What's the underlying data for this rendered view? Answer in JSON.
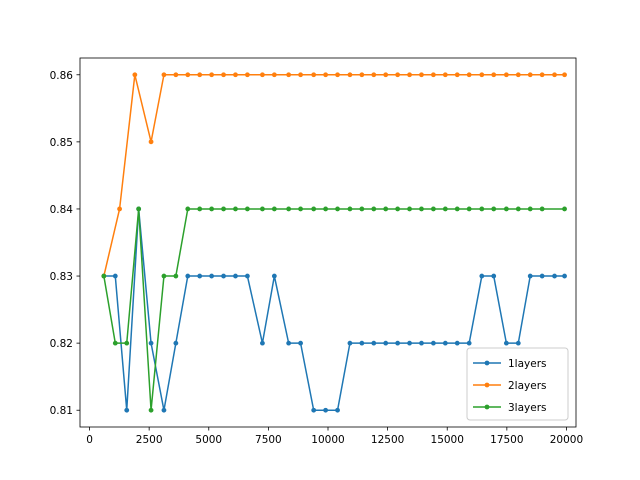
{
  "chart_data": {
    "type": "line",
    "title": "",
    "xlabel": "",
    "ylabel": "",
    "xlim": [
      -400,
      20400
    ],
    "ylim": [
      0.8075,
      0.8625
    ],
    "x_ticks": [
      {
        "value": 0,
        "label": "0"
      },
      {
        "value": 2500,
        "label": "2500"
      },
      {
        "value": 5000,
        "label": "5000"
      },
      {
        "value": 7500,
        "label": "7500"
      },
      {
        "value": 10000,
        "label": "10000"
      },
      {
        "value": 12500,
        "label": "12500"
      },
      {
        "value": 15000,
        "label": "15000"
      },
      {
        "value": 17500,
        "label": "17500"
      },
      {
        "value": 20000,
        "label": "20000"
      }
    ],
    "y_ticks": [
      {
        "value": 0.81,
        "label": "0.81"
      },
      {
        "value": 0.82,
        "label": "0.82"
      },
      {
        "value": 0.83,
        "label": "0.83"
      },
      {
        "value": 0.84,
        "label": "0.84"
      },
      {
        "value": 0.85,
        "label": "0.85"
      },
      {
        "value": 0.86,
        "label": "0.86"
      }
    ],
    "grid": false,
    "legend_position": "bottom-right",
    "x": [
      600,
      1080,
      1560,
      2060,
      2580,
      3120,
      3620,
      4120,
      4620,
      5120,
      5620,
      6120,
      6620,
      7250,
      7750,
      8350,
      8850,
      9400,
      9900,
      10400,
      10920,
      11420,
      11920,
      12420,
      12920,
      13420,
      13920,
      14420,
      14920,
      15420,
      15920,
      16450,
      16950,
      17480,
      17980,
      18480,
      18980,
      19500,
      19920
    ],
    "series": [
      {
        "name": "1layers",
        "color": "#1f77b4",
        "values": [
          0.83,
          0.83,
          0.81,
          0.84,
          0.82,
          0.81,
          0.82,
          0.83,
          0.83,
          0.83,
          0.83,
          0.83,
          0.83,
          0.82,
          0.83,
          0.82,
          0.82,
          0.81,
          0.81,
          0.81,
          0.82,
          0.82,
          0.82,
          0.82,
          0.82,
          0.82,
          0.82,
          0.82,
          0.82,
          0.82,
          0.82,
          0.83,
          0.83,
          0.82,
          0.82,
          0.83,
          0.83,
          0.83,
          0.83
        ]
      },
      {
        "name": "2layers",
        "color": "#ff7f0e",
        "values": [
          0.83,
          0.84,
          0.86,
          0.85,
          0.86,
          0.86,
          0.86,
          0.86,
          0.86,
          0.86,
          0.86,
          0.86,
          0.86,
          0.86,
          0.86,
          0.86,
          0.86,
          0.86,
          0.86,
          0.86,
          0.86,
          0.86,
          0.86,
          0.86,
          0.86,
          0.86,
          0.86,
          0.86,
          0.86,
          0.86,
          0.86,
          0.86,
          0.86,
          0.86,
          0.86,
          0.86,
          0.86,
          0.86
        ],
        "x": [
          600,
          1260,
          1900,
          2580,
          3120,
          3620,
          4120,
          4620,
          5120,
          5620,
          6120,
          6620,
          7250,
          7750,
          8350,
          8850,
          9400,
          9900,
          10400,
          10920,
          11420,
          11920,
          12420,
          12920,
          13420,
          13920,
          14420,
          14920,
          15420,
          15920,
          16450,
          16950,
          17480,
          17980,
          18480,
          18980,
          19500,
          19920
        ]
      },
      {
        "name": "3layers",
        "color": "#2ca02c",
        "values": [
          0.83,
          0.82,
          0.82,
          0.84,
          0.81,
          0.83,
          0.83,
          0.84,
          0.84,
          0.84,
          0.84,
          0.84,
          0.84,
          0.84,
          0.84,
          0.84,
          0.84,
          0.84,
          0.84,
          0.84,
          0.84,
          0.84,
          0.84,
          0.84,
          0.84,
          0.84,
          0.84,
          0.84,
          0.84,
          0.84,
          0.84,
          0.84,
          0.84,
          0.84,
          0.84,
          0.84,
          0.84,
          0.84
        ],
        "x": [
          600,
          1080,
          1560,
          2060,
          2580,
          3120,
          3620,
          4120,
          4620,
          5120,
          5620,
          6120,
          6620,
          7250,
          7750,
          8350,
          8850,
          9400,
          9900,
          10400,
          10920,
          11420,
          11920,
          12420,
          12920,
          13420,
          13920,
          14420,
          14920,
          15420,
          15920,
          16450,
          16950,
          17480,
          17980,
          18480,
          18980,
          19920
        ]
      }
    ]
  }
}
